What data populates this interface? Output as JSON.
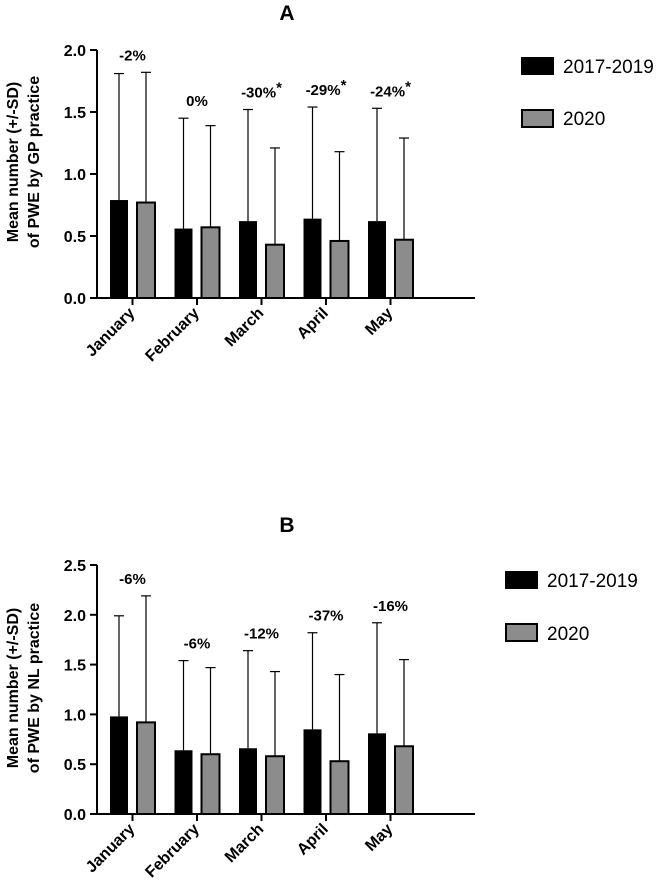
{
  "chart_data": [
    {
      "type": "bar",
      "title": "A",
      "ylabel_line1": "Mean number (+/-SD)",
      "ylabel_line2": "of PWE by GP practice",
      "xlabel": "",
      "ylim": [
        0,
        2.0
      ],
      "yticks": [
        "0.0",
        "0.5",
        "1.0",
        "1.5",
        "2.0"
      ],
      "categories": [
        "January",
        "February",
        "March",
        "April",
        "May"
      ],
      "series": [
        {
          "name": "2017-2019",
          "color": "#000000",
          "values": [
            0.79,
            0.56,
            0.62,
            0.64,
            0.62
          ],
          "sd_upper": [
            1.81,
            1.45,
            1.52,
            1.54,
            1.53
          ]
        },
        {
          "name": "2020",
          "color": "#8c8c8c",
          "values": [
            0.77,
            0.57,
            0.43,
            0.46,
            0.47
          ],
          "sd_upper": [
            1.82,
            1.39,
            1.21,
            1.18,
            1.29
          ]
        }
      ],
      "annotations": [
        {
          "text": "-2%",
          "star": ""
        },
        {
          "text": "0%",
          "star": ""
        },
        {
          "text": "-30%",
          "star": "*"
        },
        {
          "text": "-29%",
          "star": "*"
        },
        {
          "text": "-24%",
          "star": "*"
        }
      ]
    },
    {
      "type": "bar",
      "title": "B",
      "ylabel_line1": "Mean number (+/-SD)",
      "ylabel_line2": "of PWE by NL practice",
      "xlabel": "",
      "ylim": [
        0,
        2.5
      ],
      "yticks": [
        "0.0",
        "0.5",
        "1.0",
        "1.5",
        "2.0",
        "2.5"
      ],
      "categories": [
        "January",
        "February",
        "March",
        "April",
        "May"
      ],
      "series": [
        {
          "name": "2017-2019",
          "color": "#000000",
          "values": [
            0.98,
            0.64,
            0.66,
            0.85,
            0.81
          ],
          "sd_upper": [
            1.99,
            1.54,
            1.64,
            1.82,
            1.92
          ]
        },
        {
          "name": "2020",
          "color": "#8c8c8c",
          "values": [
            0.92,
            0.6,
            0.58,
            0.53,
            0.68
          ],
          "sd_upper": [
            2.19,
            1.47,
            1.43,
            1.4,
            1.55
          ]
        }
      ],
      "annotations": [
        {
          "text": "-6%",
          "star": ""
        },
        {
          "text": "-6%",
          "star": ""
        },
        {
          "text": "-12%",
          "star": ""
        },
        {
          "text": "-37%",
          "star": ""
        },
        {
          "text": "-16%",
          "star": ""
        }
      ]
    }
  ]
}
